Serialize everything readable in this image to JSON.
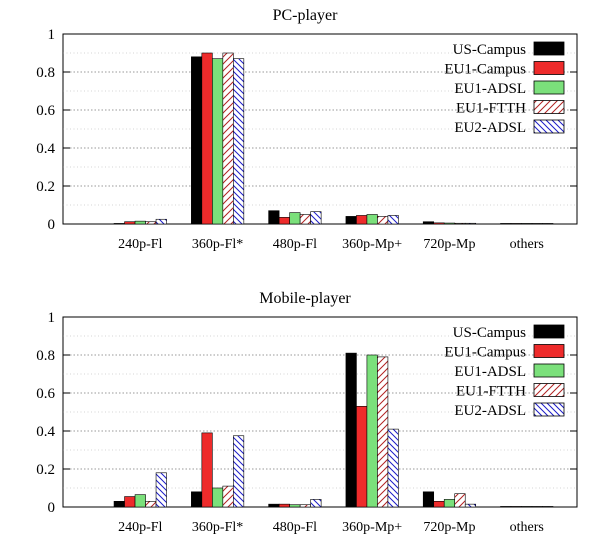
{
  "chart_data": [
    {
      "type": "bar",
      "title": "PC-player",
      "xlabel": "",
      "ylabel": "",
      "ylim": [
        0,
        1
      ],
      "yticks": [
        "0",
        "0.2",
        "0.4",
        "0.6",
        "0.8",
        "1"
      ],
      "grid": true,
      "legend_position": "top-right",
      "categories": [
        "240p-Fl",
        "360p-Fl*",
        "480p-Fl",
        "360p-Mp+",
        "720p-Mp",
        "others"
      ],
      "series": [
        {
          "name": "US-Campus",
          "values": [
            0.003,
            0.88,
            0.07,
            0.04,
            0.012,
            0.003
          ]
        },
        {
          "name": "EU1-Campus",
          "values": [
            0.012,
            0.9,
            0.035,
            0.045,
            0.006,
            0.003
          ]
        },
        {
          "name": "EU1-ADSL",
          "values": [
            0.015,
            0.87,
            0.06,
            0.05,
            0.005,
            0.003
          ]
        },
        {
          "name": "EU1-FTTH",
          "values": [
            0.012,
            0.9,
            0.05,
            0.04,
            0.004,
            0.003
          ]
        },
        {
          "name": "EU2-ADSL",
          "values": [
            0.025,
            0.87,
            0.065,
            0.045,
            0.004,
            0.003
          ]
        }
      ]
    },
    {
      "type": "bar",
      "title": "Mobile-player",
      "xlabel": "",
      "ylabel": "",
      "ylim": [
        0,
        1
      ],
      "yticks": [
        "0",
        "0.2",
        "0.4",
        "0.6",
        "0.8",
        "1"
      ],
      "grid": true,
      "legend_position": "top-right",
      "categories": [
        "240p-Fl",
        "360p-Fl*",
        "480p-Fl",
        "360p-Mp+",
        "720p-Mp",
        "others"
      ],
      "series": [
        {
          "name": "US-Campus",
          "values": [
            0.03,
            0.08,
            0.015,
            0.81,
            0.08,
            0.003
          ]
        },
        {
          "name": "EU1-Campus",
          "values": [
            0.055,
            0.39,
            0.015,
            0.53,
            0.03,
            0.003
          ]
        },
        {
          "name": "EU1-ADSL",
          "values": [
            0.065,
            0.1,
            0.012,
            0.8,
            0.04,
            0.003
          ]
        },
        {
          "name": "EU1-FTTH",
          "values": [
            0.03,
            0.11,
            0.012,
            0.79,
            0.07,
            0.003
          ]
        },
        {
          "name": "EU2-ADSL",
          "values": [
            0.18,
            0.375,
            0.04,
            0.41,
            0.015,
            0.003
          ]
        }
      ]
    }
  ],
  "series_styles": [
    {
      "fill": "#000000",
      "pattern": "solid"
    },
    {
      "fill": "#ee2b2b",
      "pattern": "solid"
    },
    {
      "fill": "#7be07b",
      "pattern": "solid"
    },
    {
      "fill": "#b22222",
      "pattern": "hatch-forward"
    },
    {
      "fill": "#1c1cc8",
      "pattern": "hatch-back"
    }
  ]
}
